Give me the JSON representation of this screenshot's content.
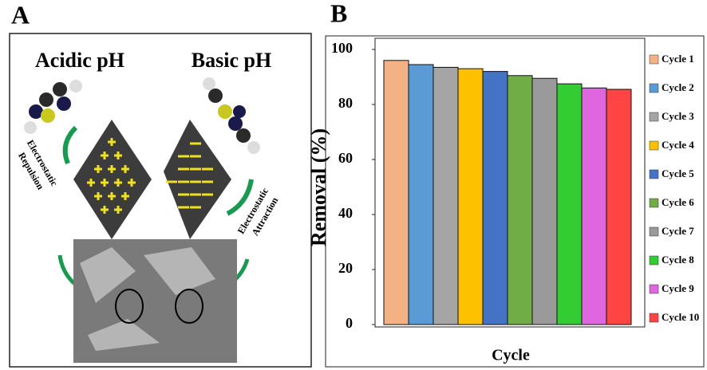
{
  "panel_a": {
    "label": "A",
    "left_title": "Acidic pH",
    "right_title": "Basic pH",
    "left_caption": [
      "Electrostatic",
      "Repulsion"
    ],
    "right_caption": [
      "Electrostatic",
      "Attraction"
    ]
  },
  "chart_data": {
    "type": "bar",
    "panel_label": "B",
    "y_label": "Removal (%)",
    "x_label": "Cycle",
    "categories": [
      null
    ],
    "series": [
      {
        "name": "Cycle 1",
        "color": "#f4b183",
        "values": [
          96
        ]
      },
      {
        "name": "Cycle 2",
        "color": "#5b9bd5",
        "values": [
          94.5
        ]
      },
      {
        "name": "Cycle 3",
        "color": "#a5a5a5",
        "values": [
          93.5
        ]
      },
      {
        "name": "Cycle 4",
        "color": "#ffc000",
        "values": [
          93
        ]
      },
      {
        "name": "Cycle 5",
        "color": "#4472c4",
        "values": [
          92
        ]
      },
      {
        "name": "Cycle 6",
        "color": "#70ad47",
        "values": [
          90.5
        ]
      },
      {
        "name": "Cycle 7",
        "color": "#9a9a9a",
        "values": [
          89.5
        ]
      },
      {
        "name": "Cycle 8",
        "color": "#33cc33",
        "values": [
          87.5
        ]
      },
      {
        "name": "Cycle 9",
        "color": "#e066e0",
        "values": [
          86
        ]
      },
      {
        "name": "Cycle 10",
        "color": "#ff4444",
        "values": [
          85.5
        ]
      }
    ],
    "ylim": [
      0,
      100
    ],
    "yticks": [
      0,
      20,
      40,
      60,
      80,
      100
    ],
    "grid": false,
    "legend": "right"
  }
}
